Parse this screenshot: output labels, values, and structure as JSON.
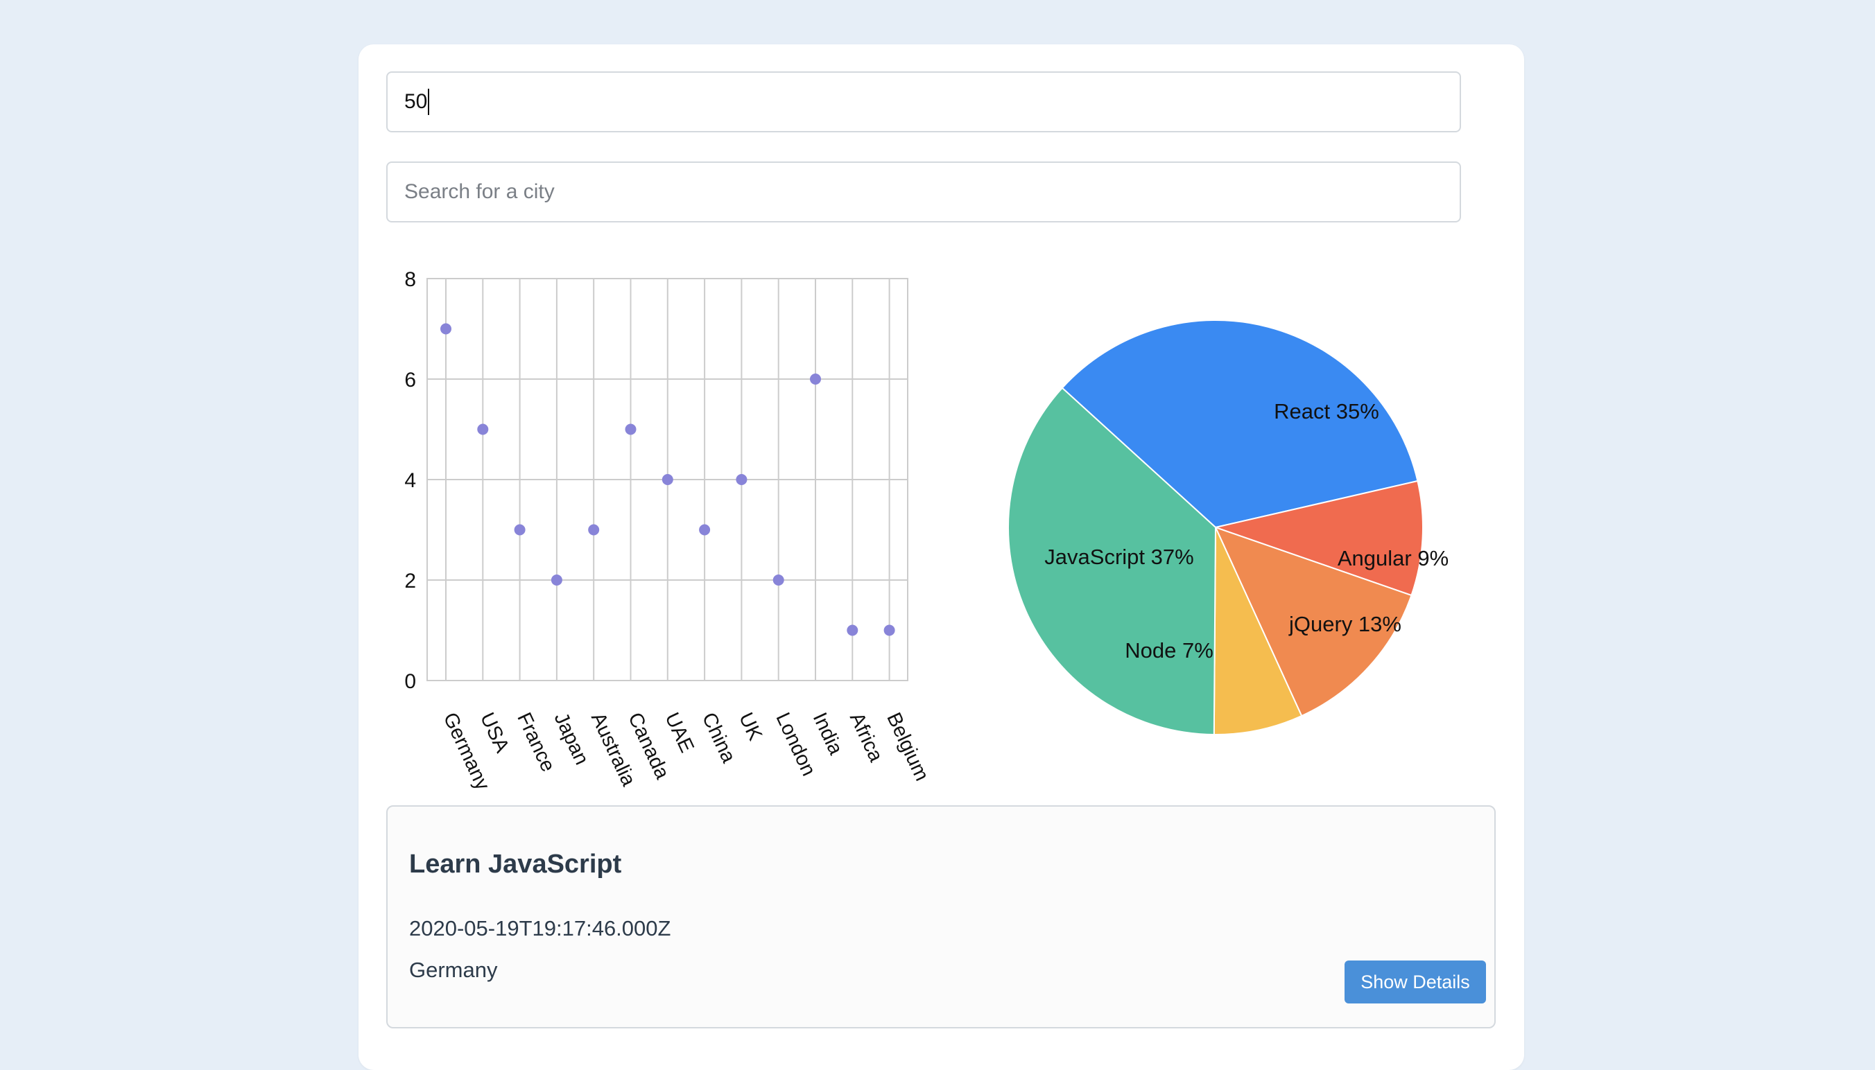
{
  "inputs": {
    "limit_value": "50",
    "city_placeholder": "Search for a city"
  },
  "chart_data": [
    {
      "type": "scatter",
      "categories": [
        "Germany",
        "USA",
        "France",
        "Japan",
        "Australia",
        "Canada",
        "UAE",
        "China",
        "UK",
        "London",
        "India",
        "Africa",
        "Belgium"
      ],
      "values": [
        7,
        5,
        3,
        2,
        3,
        5,
        4,
        3,
        4,
        2,
        6,
        1,
        1
      ],
      "ylim": [
        0,
        8
      ],
      "yticks": [
        "0",
        "2",
        "4",
        "6",
        "8"
      ],
      "grid": true,
      "point_color": "#8884d8"
    },
    {
      "type": "pie",
      "slices": [
        {
          "label": "React 35%",
          "value": 35,
          "color": "#3a8af2"
        },
        {
          "label": "Angular 9%",
          "value": 9,
          "color": "#f06b4f"
        },
        {
          "label": "jQuery 13%",
          "value": 13,
          "color": "#f08a50"
        },
        {
          "label": "Node 7%",
          "value": 7,
          "color": "#f5bd4f"
        },
        {
          "label": "JavaScript 37%",
          "value": 37,
          "color": "#57c1a0"
        }
      ]
    }
  ],
  "detail_card": {
    "title": "Learn JavaScript",
    "date": "2020-05-19T19:17:46.000Z",
    "country": "Germany",
    "button_label": "Show Details"
  },
  "colors": {
    "background": "#e6eef7",
    "card": "#ffffff",
    "button": "#4a90d9"
  }
}
